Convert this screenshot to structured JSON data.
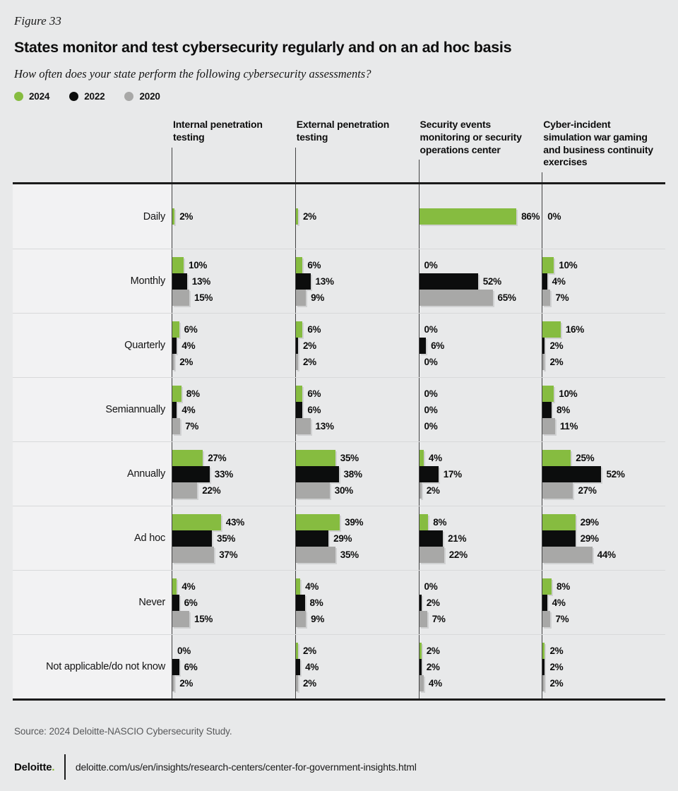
{
  "figure_label": "Figure 33",
  "title": "States monitor and test cybersecurity regularly and on an ad hoc basis",
  "subtitle": "How often does your state perform the following cybersecurity assessments?",
  "legend": [
    {
      "label": "2024",
      "color": "#86bc40"
    },
    {
      "label": "2022",
      "color": "#0c0d0d"
    },
    {
      "label": "2020",
      "color": "#a8a8a7"
    }
  ],
  "source": "Source: 2024 Deloitte-NASCIO Cybersecurity Study.",
  "footer": {
    "brand": "Deloitte",
    "brand_dot": ".",
    "url": "deloitte.com/us/en/insights/research-centers/center-for-government-insights.html"
  },
  "chart_data": {
    "type": "bar",
    "orientation": "horizontal",
    "unit": "%",
    "xlim": [
      0,
      100
    ],
    "grid": false,
    "legend_position": "top-left",
    "series": [
      "2024",
      "2022",
      "2020"
    ],
    "series_colors": [
      "#86bc40",
      "#0c0d0d",
      "#a8a8a7"
    ],
    "categories": [
      "Internal penetration testing",
      "External penetration testing",
      "Security events monitoring or security operations center",
      "Cyber-incident simulation war gaming and business continuity exercises"
    ],
    "rows": [
      {
        "label": "Daily",
        "values": [
          [
            2,
            null,
            null
          ],
          [
            2,
            null,
            null
          ],
          [
            86,
            null,
            null
          ],
          [
            0,
            null,
            null
          ]
        ]
      },
      {
        "label": "Monthly",
        "values": [
          [
            10,
            13,
            15
          ],
          [
            6,
            13,
            9
          ],
          [
            0,
            52,
            65
          ],
          [
            10,
            4,
            7
          ]
        ]
      },
      {
        "label": "Quarterly",
        "values": [
          [
            6,
            4,
            2
          ],
          [
            6,
            2,
            2
          ],
          [
            0,
            6,
            0
          ],
          [
            16,
            2,
            2
          ]
        ]
      },
      {
        "label": "Semiannually",
        "values": [
          [
            8,
            4,
            7
          ],
          [
            6,
            6,
            13
          ],
          [
            0,
            0,
            0
          ],
          [
            10,
            8,
            11
          ]
        ]
      },
      {
        "label": "Annually",
        "values": [
          [
            27,
            33,
            22
          ],
          [
            35,
            38,
            30
          ],
          [
            4,
            17,
            2
          ],
          [
            25,
            52,
            27
          ]
        ]
      },
      {
        "label": "Ad hoc",
        "values": [
          [
            43,
            35,
            37
          ],
          [
            39,
            29,
            35
          ],
          [
            8,
            21,
            22
          ],
          [
            29,
            29,
            44
          ]
        ]
      },
      {
        "label": "Never",
        "values": [
          [
            4,
            6,
            15
          ],
          [
            4,
            8,
            9
          ],
          [
            0,
            2,
            7
          ],
          [
            8,
            4,
            7
          ]
        ]
      },
      {
        "label": "Not applicable/do not know",
        "values": [
          [
            0,
            6,
            2
          ],
          [
            2,
            4,
            2
          ],
          [
            2,
            2,
            4
          ],
          [
            2,
            2,
            2
          ]
        ]
      }
    ]
  }
}
